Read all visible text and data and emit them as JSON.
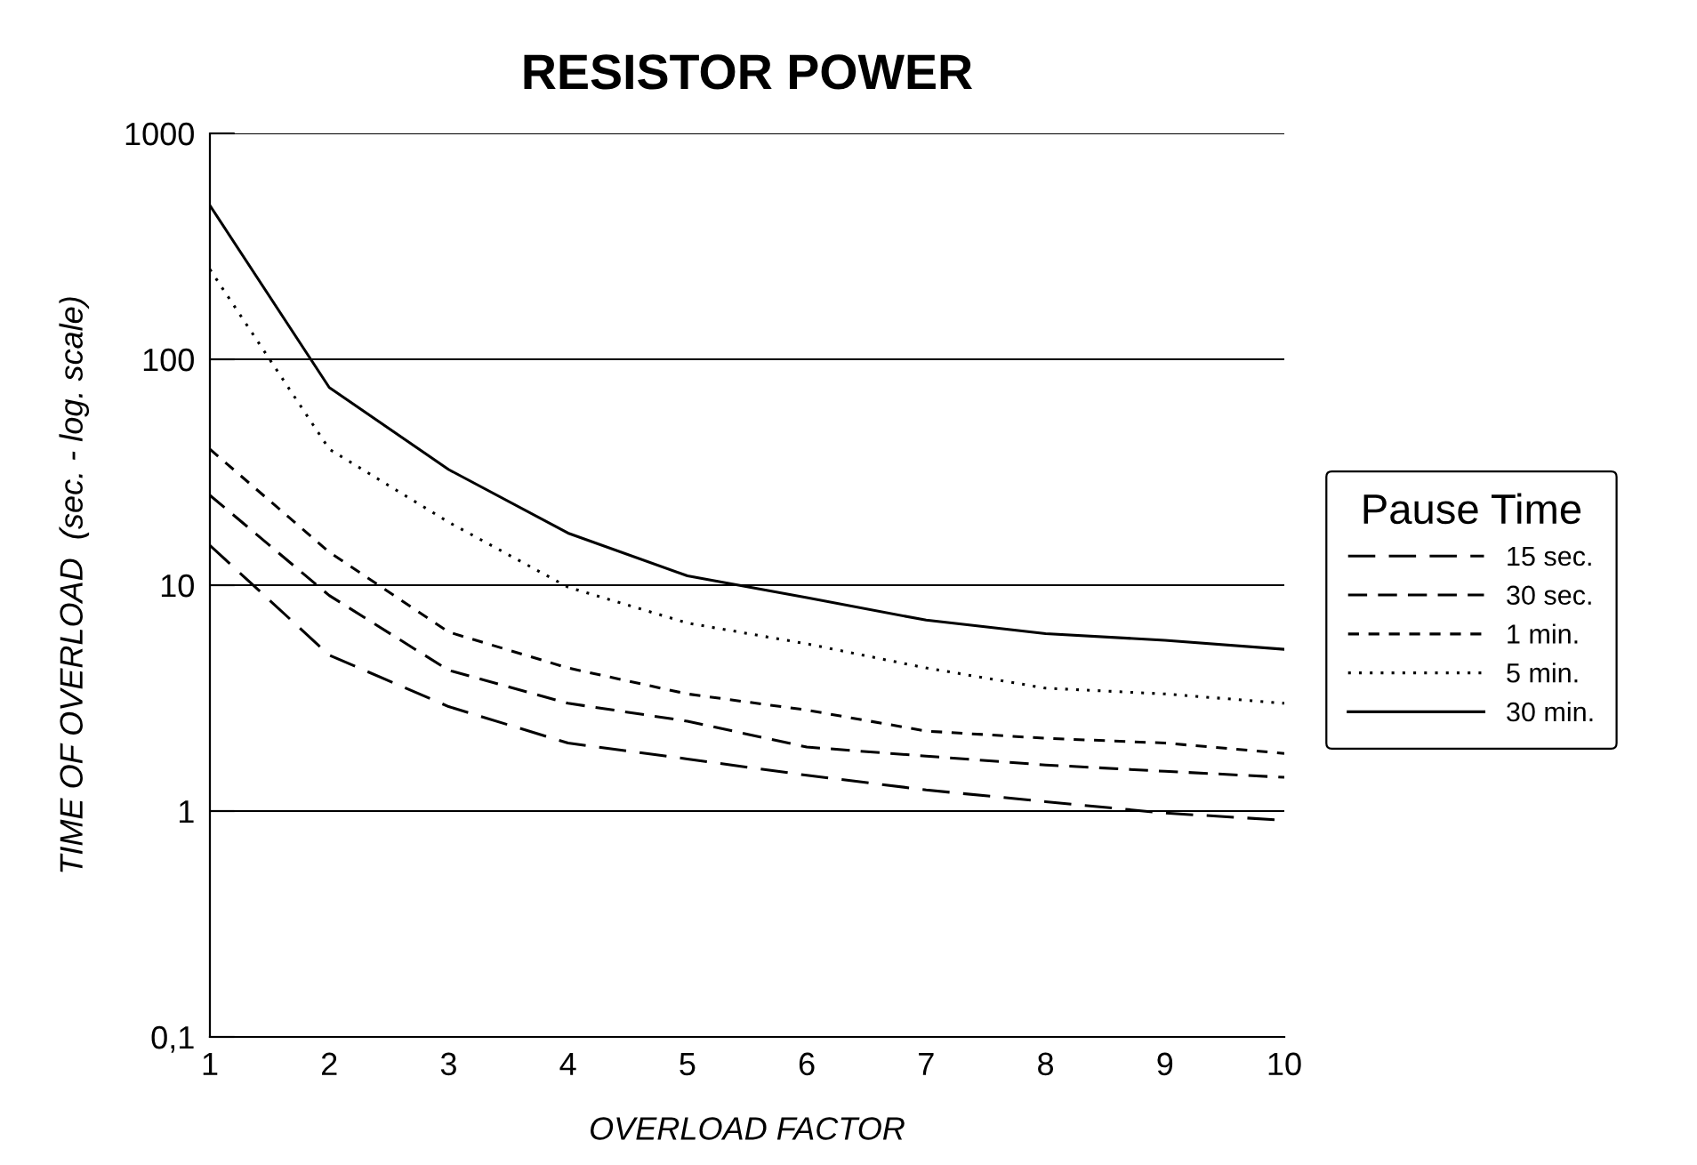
{
  "chart_data": {
    "type": "line",
    "title": "RESISTOR POWER",
    "xlabel": "OVERLOAD FACTOR",
    "ylabel": "TIME OF OVERLOAD  (sec. - log. scale)",
    "legend_title": "Pause Time",
    "x": [
      1,
      2,
      3,
      4,
      5,
      6,
      7,
      8,
      9,
      10
    ],
    "series": [
      {
        "name": "15 sec.",
        "color": "#000000",
        "line_style": "dashed",
        "values": [
          15,
          4.9,
          2.9,
          2.0,
          1.7,
          1.44,
          1.24,
          1.1,
          0.98,
          0.91
        ]
      },
      {
        "name": "30 sec.",
        "color": "#000000",
        "line_style": "dashed",
        "values": [
          25,
          9,
          4.2,
          3.0,
          2.5,
          1.92,
          1.75,
          1.6,
          1.5,
          1.41
        ]
      },
      {
        "name": "1 min.",
        "color": "#000000",
        "line_style": "dashed",
        "values": [
          40,
          14,
          6.2,
          4.3,
          3.3,
          2.8,
          2.26,
          2.1,
          2.0,
          1.8
        ]
      },
      {
        "name": "5 min.",
        "color": "#000000",
        "line_style": "dotted",
        "values": [
          250,
          40,
          19,
          9.8,
          6.8,
          5.5,
          4.3,
          3.5,
          3.3,
          3.0
        ]
      },
      {
        "name": "30 min.",
        "color": "#000000",
        "line_style": "solid",
        "values": [
          480,
          75,
          32.5,
          17,
          11,
          8.8,
          7,
          6.1,
          5.7,
          5.2
        ]
      }
    ],
    "log": true,
    "xlim": [
      1,
      10
    ],
    "xticks": [
      1,
      2,
      3,
      4,
      5,
      6,
      7,
      8,
      9,
      10
    ],
    "ylim": [
      0.1,
      1000
    ],
    "yticks": [
      {
        "value": 0.1,
        "label": "0,1"
      },
      1,
      10,
      100,
      1000
    ],
    "grid": "y",
    "legend": "right",
    "marker": "none"
  }
}
